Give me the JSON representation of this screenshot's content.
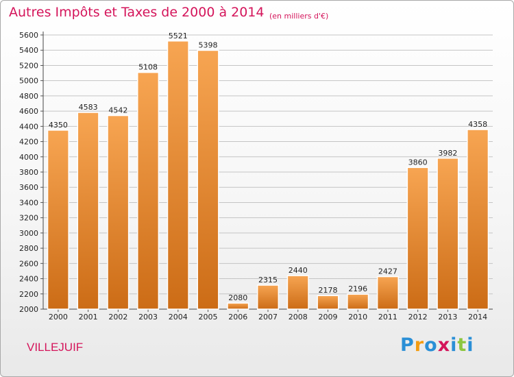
{
  "header": {
    "title": "Autres Impôts et Taxes de 2000 à 2014",
    "subtitle": "(en milliers d'€)"
  },
  "footer": {
    "city": "VILLEJUIF",
    "brand_letters": [
      {
        "ch": "P",
        "color": "#2a8fd6"
      },
      {
        "ch": "r",
        "color": "#f39c12"
      },
      {
        "ch": "o",
        "color": "#2a8fd6"
      },
      {
        "ch": "x",
        "color": "#d4145a"
      },
      {
        "ch": "i",
        "color": "#2a8fd6"
      },
      {
        "ch": "t",
        "color": "#8cc63f"
      },
      {
        "ch": "i",
        "color": "#2a8fd6"
      }
    ]
  },
  "colors": {
    "bar_light": "#f7a552",
    "bar_dark": "#cc6c16",
    "grid": "#c4c4c4",
    "title": "#d4145a"
  },
  "chart_data": {
    "type": "bar",
    "title": "Autres Impôts et Taxes de 2000 à 2014",
    "subtitle": "(en milliers d'€)",
    "categories": [
      "2000",
      "2001",
      "2002",
      "2003",
      "2004",
      "2005",
      "2006",
      "2007",
      "2008",
      "2009",
      "2010",
      "2011",
      "2012",
      "2013",
      "2014"
    ],
    "values": [
      4350,
      4583,
      4542,
      5108,
      5521,
      5398,
      2080,
      2315,
      2440,
      2178,
      2196,
      2427,
      3860,
      3982,
      4358
    ],
    "ylim": [
      2000,
      5600
    ],
    "ytick_step": 200,
    "grid": true,
    "xlabel": "",
    "ylabel": ""
  }
}
